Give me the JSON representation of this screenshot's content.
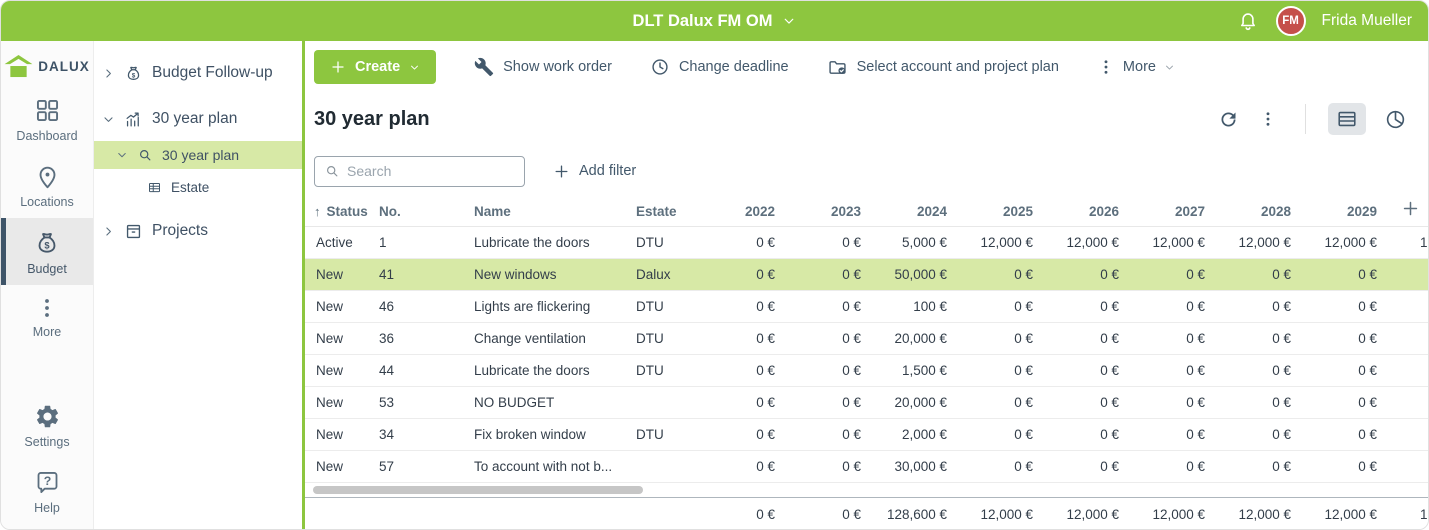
{
  "topbar": {
    "title": "DLT Dalux FM OM",
    "user": {
      "initials": "FM",
      "name": "Frida Mueller"
    }
  },
  "sidebar": {
    "logo_text": "DALUX",
    "logo_icon": "house-icon",
    "items": [
      {
        "label": "Dashboard",
        "icon": "dashboard-grid-icon",
        "selected": false
      },
      {
        "label": "Locations",
        "icon": "location-pin-icon",
        "selected": false
      },
      {
        "label": "Budget",
        "icon": "money-bag-icon",
        "selected": true
      },
      {
        "label": "More",
        "icon": "vertical-dots-icon",
        "selected": false
      }
    ],
    "footer_items": [
      {
        "label": "Settings",
        "icon": "gear-icon"
      },
      {
        "label": "Help",
        "icon": "help-bubble-icon"
      }
    ]
  },
  "tree": {
    "items": [
      {
        "label": "Budget Follow-up",
        "icon": "money-bag-icon",
        "expand": "collapsed",
        "level": 0,
        "selected": false
      },
      {
        "label": "30 year plan",
        "icon": "chart-growth-icon",
        "expand": "expanded",
        "level": 0,
        "selected": false
      },
      {
        "label": "30 year plan",
        "icon": "magnifier-icon",
        "expand": "expanded",
        "level": 1,
        "selected": true
      },
      {
        "label": "Estate",
        "icon": "table-grid-icon",
        "expand": "none",
        "level": 2,
        "selected": false
      },
      {
        "label": "Projects",
        "icon": "projects-box-icon",
        "expand": "collapsed",
        "level": 0,
        "selected": false
      }
    ]
  },
  "toolbar": {
    "create_label": "Create",
    "actions": [
      {
        "label": "Show work order",
        "icon": "wrench-icon"
      },
      {
        "label": "Change deadline",
        "icon": "clock-icon"
      },
      {
        "label": "Select account and project plan",
        "icon": "folder-check-icon"
      }
    ],
    "more_label": "More"
  },
  "view_header": {
    "title": "30 year plan",
    "icons": [
      "refresh-icon",
      "kebab-icon",
      "table-view-icon",
      "pie-chart-view-icon"
    ],
    "active_view": "table"
  },
  "filter_bar": {
    "search_placeholder": "Search",
    "add_filter_label": "Add filter"
  },
  "table": {
    "sorted_by": "Status",
    "sort_direction": "asc",
    "columns": [
      "Status",
      "No.",
      "Name",
      "Estate"
    ],
    "year_columns": [
      "2022",
      "2023",
      "2024",
      "2025",
      "2026",
      "2027",
      "2028",
      "2029"
    ],
    "rows": [
      {
        "status": "Active",
        "no": "1",
        "name": "Lubricate the doors",
        "estate": "DTU",
        "values": [
          "0 €",
          "0 €",
          "5,000 €",
          "12,000 €",
          "12,000 €",
          "12,000 €",
          "12,000 €",
          "12,000 €"
        ],
        "overflow": "1",
        "highlighted": false
      },
      {
        "status": "New",
        "no": "41",
        "name": "New windows",
        "estate": "Dalux",
        "values": [
          "0 €",
          "0 €",
          "50,000 €",
          "0 €",
          "0 €",
          "0 €",
          "0 €",
          "0 €"
        ],
        "overflow": "",
        "highlighted": true
      },
      {
        "status": "New",
        "no": "46",
        "name": "Lights are flickering",
        "estate": "DTU",
        "values": [
          "0 €",
          "0 €",
          "100 €",
          "0 €",
          "0 €",
          "0 €",
          "0 €",
          "0 €"
        ],
        "overflow": "",
        "highlighted": false
      },
      {
        "status": "New",
        "no": "36",
        "name": "Change ventilation",
        "estate": "DTU",
        "values": [
          "0 €",
          "0 €",
          "20,000 €",
          "0 €",
          "0 €",
          "0 €",
          "0 €",
          "0 €"
        ],
        "overflow": "",
        "highlighted": false
      },
      {
        "status": "New",
        "no": "44",
        "name": "Lubricate the doors",
        "estate": "DTU",
        "values": [
          "0 €",
          "0 €",
          "1,500 €",
          "0 €",
          "0 €",
          "0 €",
          "0 €",
          "0 €"
        ],
        "overflow": "",
        "highlighted": false
      },
      {
        "status": "New",
        "no": "53",
        "name": "NO BUDGET",
        "estate": "",
        "values": [
          "0 €",
          "0 €",
          "20,000 €",
          "0 €",
          "0 €",
          "0 €",
          "0 €",
          "0 €"
        ],
        "overflow": "",
        "highlighted": false
      },
      {
        "status": "New",
        "no": "34",
        "name": "Fix broken window",
        "estate": "DTU",
        "values": [
          "0 €",
          "0 €",
          "2,000 €",
          "0 €",
          "0 €",
          "0 €",
          "0 €",
          "0 €"
        ],
        "overflow": "",
        "highlighted": false
      },
      {
        "status": "New",
        "no": "57",
        "name": "To account with not b...",
        "estate": "",
        "values": [
          "0 €",
          "0 €",
          "30,000 €",
          "0 €",
          "0 €",
          "0 €",
          "0 €",
          "0 €"
        ],
        "overflow": "",
        "highlighted": false
      }
    ],
    "totals": {
      "values": [
        "0 €",
        "0 €",
        "128,600 €",
        "12,000 €",
        "12,000 €",
        "12,000 €",
        "12,000 €",
        "12,000 €"
      ],
      "overflow": "1"
    }
  },
  "colors": {
    "brand_green": "#8dc63f",
    "row_highlight": "#d7e9a6",
    "avatar_red": "#c5504a",
    "icon_slate": "#42586b"
  }
}
